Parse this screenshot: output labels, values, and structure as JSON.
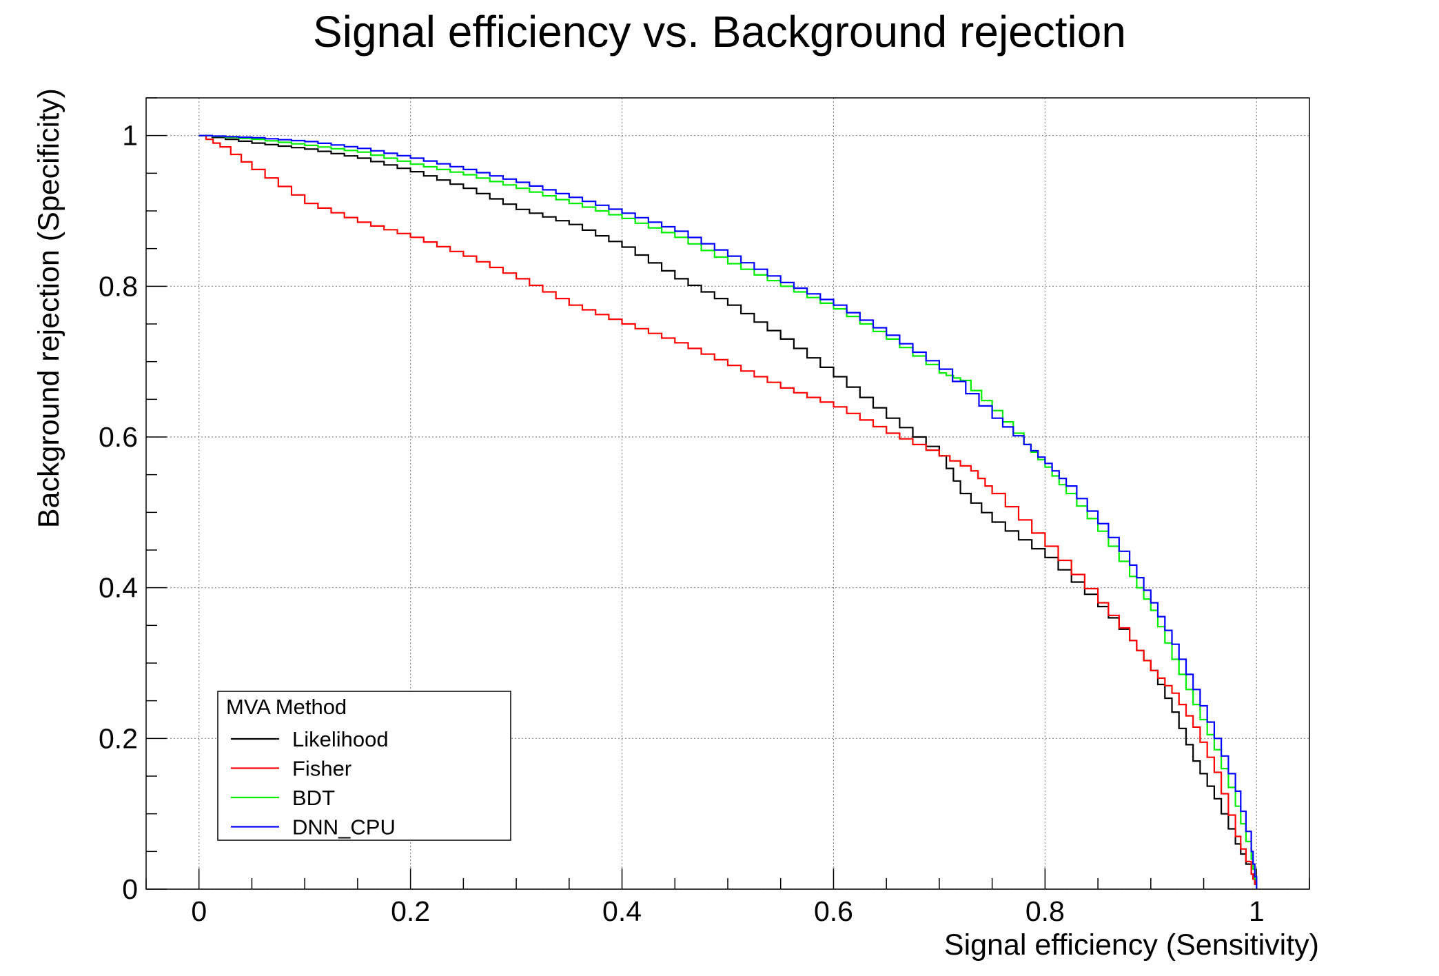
{
  "chart_data": {
    "type": "line",
    "title": "Signal efficiency vs. Background rejection",
    "xlabel": "Signal efficiency (Sensitivity)",
    "ylabel": "Background rejection (Specificity)",
    "xlim": [
      -0.05,
      1.05
    ],
    "ylim": [
      0,
      1.05
    ],
    "xticks": [
      0,
      0.2,
      0.4,
      0.6,
      0.8,
      1
    ],
    "xtick_labels": [
      "0",
      "0.2",
      "0.4",
      "0.6",
      "0.8",
      "1"
    ],
    "yticks": [
      0,
      0.2,
      0.4,
      0.6,
      0.8,
      1
    ],
    "ytick_labels": [
      "0",
      "0.2",
      "0.4",
      "0.6",
      "0.8",
      "1"
    ],
    "grid": true,
    "legend": {
      "title": "MVA Method",
      "placement": "bottom-left"
    },
    "series": [
      {
        "name": "Likelihood",
        "color": "#000000",
        "points": [
          [
            0,
            1
          ],
          [
            0.05,
            0.99
          ],
          [
            0.1,
            0.982
          ],
          [
            0.15,
            0.97
          ],
          [
            0.2,
            0.952
          ],
          [
            0.25,
            0.93
          ],
          [
            0.3,
            0.902
          ],
          [
            0.35,
            0.882
          ],
          [
            0.4,
            0.852
          ],
          [
            0.45,
            0.81
          ],
          [
            0.5,
            0.775
          ],
          [
            0.55,
            0.73
          ],
          [
            0.6,
            0.68
          ],
          [
            0.65,
            0.625
          ],
          [
            0.7,
            0.575
          ],
          [
            0.72,
            0.525
          ],
          [
            0.75,
            0.487
          ],
          [
            0.8,
            0.44
          ],
          [
            0.85,
            0.375
          ],
          [
            0.88,
            0.33
          ],
          [
            0.9,
            0.29
          ],
          [
            0.92,
            0.235
          ],
          [
            0.94,
            0.17
          ],
          [
            0.96,
            0.12
          ],
          [
            0.98,
            0.06
          ],
          [
            0.995,
            0.02
          ],
          [
            1,
            0
          ]
        ]
      },
      {
        "name": "Fisher",
        "color": "#ff0000",
        "points": [
          [
            0,
            1
          ],
          [
            0.02,
            0.985
          ],
          [
            0.05,
            0.955
          ],
          [
            0.1,
            0.91
          ],
          [
            0.15,
            0.885
          ],
          [
            0.2,
            0.865
          ],
          [
            0.25,
            0.84
          ],
          [
            0.3,
            0.81
          ],
          [
            0.35,
            0.775
          ],
          [
            0.4,
            0.75
          ],
          [
            0.45,
            0.725
          ],
          [
            0.5,
            0.695
          ],
          [
            0.55,
            0.665
          ],
          [
            0.6,
            0.64
          ],
          [
            0.65,
            0.605
          ],
          [
            0.7,
            0.575
          ],
          [
            0.73,
            0.555
          ],
          [
            0.75,
            0.525
          ],
          [
            0.8,
            0.455
          ],
          [
            0.85,
            0.38
          ],
          [
            0.88,
            0.33
          ],
          [
            0.9,
            0.29
          ],
          [
            0.92,
            0.26
          ],
          [
            0.94,
            0.215
          ],
          [
            0.96,
            0.155
          ],
          [
            0.98,
            0.07
          ],
          [
            0.995,
            0.02
          ],
          [
            1,
            0
          ]
        ]
      },
      {
        "name": "BDT",
        "color": "#00ee00",
        "points": [
          [
            0,
            1
          ],
          [
            0.05,
            0.995
          ],
          [
            0.1,
            0.987
          ],
          [
            0.15,
            0.978
          ],
          [
            0.2,
            0.962
          ],
          [
            0.25,
            0.948
          ],
          [
            0.3,
            0.93
          ],
          [
            0.35,
            0.91
          ],
          [
            0.4,
            0.89
          ],
          [
            0.45,
            0.865
          ],
          [
            0.5,
            0.83
          ],
          [
            0.55,
            0.8
          ],
          [
            0.6,
            0.77
          ],
          [
            0.65,
            0.73
          ],
          [
            0.7,
            0.685
          ],
          [
            0.72,
            0.675
          ],
          [
            0.75,
            0.635
          ],
          [
            0.78,
            0.59
          ],
          [
            0.8,
            0.56
          ],
          [
            0.82,
            0.525
          ],
          [
            0.85,
            0.475
          ],
          [
            0.88,
            0.415
          ],
          [
            0.9,
            0.37
          ],
          [
            0.92,
            0.305
          ],
          [
            0.94,
            0.245
          ],
          [
            0.96,
            0.185
          ],
          [
            0.98,
            0.11
          ],
          [
            0.995,
            0.04
          ],
          [
            1,
            0
          ]
        ]
      },
      {
        "name": "DNN_CPU",
        "color": "#0000ff",
        "points": [
          [
            0,
            1
          ],
          [
            0.05,
            0.997
          ],
          [
            0.1,
            0.992
          ],
          [
            0.15,
            0.983
          ],
          [
            0.2,
            0.97
          ],
          [
            0.25,
            0.955
          ],
          [
            0.3,
            0.938
          ],
          [
            0.35,
            0.918
          ],
          [
            0.4,
            0.897
          ],
          [
            0.45,
            0.873
          ],
          [
            0.5,
            0.84
          ],
          [
            0.55,
            0.805
          ],
          [
            0.6,
            0.775
          ],
          [
            0.65,
            0.735
          ],
          [
            0.7,
            0.69
          ],
          [
            0.75,
            0.625
          ],
          [
            0.78,
            0.59
          ],
          [
            0.8,
            0.565
          ],
          [
            0.82,
            0.535
          ],
          [
            0.85,
            0.485
          ],
          [
            0.88,
            0.43
          ],
          [
            0.9,
            0.38
          ],
          [
            0.92,
            0.325
          ],
          [
            0.94,
            0.265
          ],
          [
            0.96,
            0.2
          ],
          [
            0.98,
            0.13
          ],
          [
            0.995,
            0.05
          ],
          [
            1,
            0
          ]
        ]
      }
    ]
  }
}
